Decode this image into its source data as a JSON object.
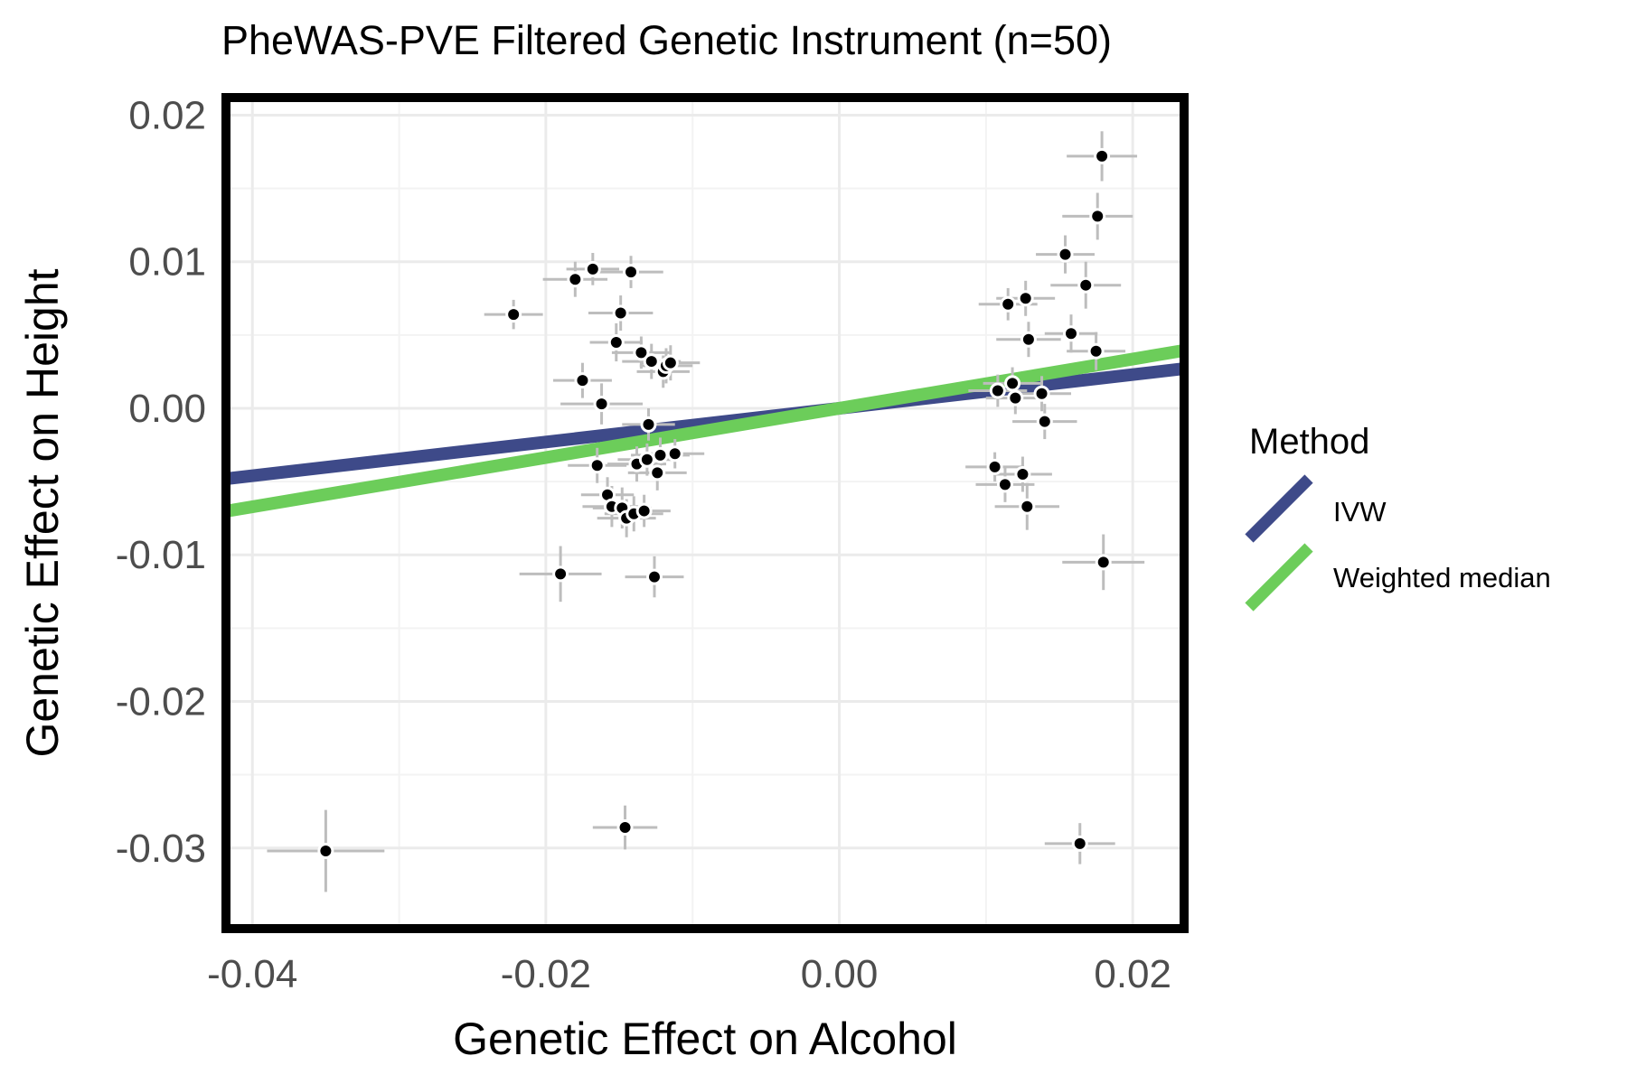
{
  "chart_data": {
    "type": "scatter",
    "title": "PheWAS-PVE Filtered Genetic Instrument (n=50)",
    "xlabel": "Genetic Effect on Alcohol",
    "ylabel": "Genetic Effect on Height",
    "xlim": [
      -0.0418,
      0.0235
    ],
    "ylim": [
      -0.0355,
      0.0212
    ],
    "xticks": [
      -0.04,
      -0.02,
      0.0,
      0.02
    ],
    "xtick_labels": [
      "-0.04",
      "-0.02",
      "0.00",
      "0.02"
    ],
    "yticks": [
      -0.03,
      -0.02,
      -0.01,
      0.0,
      0.01,
      0.02
    ],
    "ytick_labels": [
      "-0.03",
      "-0.02",
      "-0.01",
      "0.00",
      "0.01",
      "0.02"
    ],
    "grid": true,
    "legend": {
      "title": "Method",
      "placement": "right",
      "entries": [
        {
          "label": "IVW",
          "color": "#3e4a89"
        },
        {
          "label": "Weighted median",
          "color": "#6ccd5a"
        }
      ]
    },
    "lines": [
      {
        "name": "IVW",
        "color": "#3e4a89",
        "slope": 0.115,
        "intercept": 0.0
      },
      {
        "name": "Weighted median",
        "color": "#6ccd5a",
        "slope": 0.168,
        "intercept": 0.0
      }
    ],
    "points": [
      {
        "x": -0.035,
        "y": -0.0302,
        "xerr": 0.004,
        "yerr": 0.0028
      },
      {
        "x": -0.0222,
        "y": 0.0064,
        "xerr": 0.002,
        "yerr": 0.001
      },
      {
        "x": -0.019,
        "y": -0.0113,
        "xerr": 0.0028,
        "yerr": 0.0019
      },
      {
        "x": -0.018,
        "y": 0.0088,
        "xerr": 0.0022,
        "yerr": 0.0012
      },
      {
        "x": -0.0175,
        "y": 0.0019,
        "xerr": 0.002,
        "yerr": 0.0012
      },
      {
        "x": -0.0168,
        "y": 0.0095,
        "xerr": 0.0018,
        "yerr": 0.0011
      },
      {
        "x": -0.0165,
        "y": -0.0039,
        "xerr": 0.002,
        "yerr": 0.0012
      },
      {
        "x": -0.0162,
        "y": 0.0003,
        "xerr": 0.0028,
        "yerr": 0.0014
      },
      {
        "x": -0.0158,
        "y": -0.0059,
        "xerr": 0.0018,
        "yerr": 0.0012
      },
      {
        "x": -0.0155,
        "y": -0.0067,
        "xerr": 0.002,
        "yerr": 0.0014
      },
      {
        "x": -0.0152,
        "y": 0.0045,
        "xerr": 0.0018,
        "yerr": 0.0013
      },
      {
        "x": -0.0149,
        "y": 0.0065,
        "xerr": 0.0022,
        "yerr": 0.0012
      },
      {
        "x": -0.0148,
        "y": -0.0068,
        "xerr": 0.002,
        "yerr": 0.0014
      },
      {
        "x": -0.0146,
        "y": -0.0286,
        "xerr": 0.0022,
        "yerr": 0.0015
      },
      {
        "x": -0.0145,
        "y": -0.0075,
        "xerr": 0.002,
        "yerr": 0.0013
      },
      {
        "x": -0.0142,
        "y": 0.0093,
        "xerr": 0.0022,
        "yerr": 0.0011
      },
      {
        "x": -0.014,
        "y": -0.0072,
        "xerr": 0.002,
        "yerr": 0.0012
      },
      {
        "x": -0.0138,
        "y": -0.0038,
        "xerr": 0.002,
        "yerr": 0.0012
      },
      {
        "x": -0.0135,
        "y": 0.0038,
        "xerr": 0.002,
        "yerr": 0.0011
      },
      {
        "x": -0.0133,
        "y": -0.007,
        "xerr": 0.0018,
        "yerr": 0.0011
      },
      {
        "x": -0.0131,
        "y": -0.0035,
        "xerr": 0.002,
        "yerr": 0.0011
      },
      {
        "x": -0.013,
        "y": -0.0011,
        "xerr": 0.0018,
        "yerr": 0.0011
      },
      {
        "x": -0.0128,
        "y": 0.0032,
        "xerr": 0.002,
        "yerr": 0.0012
      },
      {
        "x": -0.0126,
        "y": -0.0115,
        "xerr": 0.002,
        "yerr": 0.0014
      },
      {
        "x": -0.0124,
        "y": -0.0044,
        "xerr": 0.002,
        "yerr": 0.0012
      },
      {
        "x": -0.0122,
        "y": -0.0032,
        "xerr": 0.002,
        "yerr": 0.0012
      },
      {
        "x": -0.012,
        "y": 0.0025,
        "xerr": 0.0018,
        "yerr": 0.0011
      },
      {
        "x": -0.0118,
        "y": 0.0029,
        "xerr": 0.0018,
        "yerr": 0.0012
      },
      {
        "x": -0.0115,
        "y": 0.0031,
        "xerr": 0.002,
        "yerr": 0.0012
      },
      {
        "x": -0.0112,
        "y": -0.0031,
        "xerr": 0.002,
        "yerr": 0.001
      },
      {
        "x": 0.0106,
        "y": -0.004,
        "xerr": 0.002,
        "yerr": 0.001
      },
      {
        "x": 0.0108,
        "y": 0.0012,
        "xerr": 0.002,
        "yerr": 0.0011
      },
      {
        "x": 0.0113,
        "y": -0.0052,
        "xerr": 0.002,
        "yerr": 0.0012
      },
      {
        "x": 0.0115,
        "y": 0.0071,
        "xerr": 0.002,
        "yerr": 0.0011
      },
      {
        "x": 0.0118,
        "y": 0.0017,
        "xerr": 0.002,
        "yerr": 0.0011
      },
      {
        "x": 0.012,
        "y": 0.0007,
        "xerr": 0.002,
        "yerr": 0.0011
      },
      {
        "x": 0.0125,
        "y": -0.0045,
        "xerr": 0.002,
        "yerr": 0.0012
      },
      {
        "x": 0.0127,
        "y": 0.0075,
        "xerr": 0.002,
        "yerr": 0.0012
      },
      {
        "x": 0.0128,
        "y": -0.0067,
        "xerr": 0.0022,
        "yerr": 0.0016
      },
      {
        "x": 0.0129,
        "y": 0.0047,
        "xerr": 0.0022,
        "yerr": 0.0012
      },
      {
        "x": 0.0138,
        "y": 0.001,
        "xerr": 0.002,
        "yerr": 0.0012
      },
      {
        "x": 0.014,
        "y": -0.0009,
        "xerr": 0.0022,
        "yerr": 0.0012
      },
      {
        "x": 0.0154,
        "y": 0.0105,
        "xerr": 0.002,
        "yerr": 0.0013
      },
      {
        "x": 0.0158,
        "y": 0.0051,
        "xerr": 0.0018,
        "yerr": 0.0013
      },
      {
        "x": 0.0164,
        "y": -0.0297,
        "xerr": 0.0024,
        "yerr": 0.0014
      },
      {
        "x": 0.0168,
        "y": 0.0084,
        "xerr": 0.0024,
        "yerr": 0.0016
      },
      {
        "x": 0.0175,
        "y": 0.0039,
        "xerr": 0.002,
        "yerr": 0.0013
      },
      {
        "x": 0.0176,
        "y": 0.0131,
        "xerr": 0.0024,
        "yerr": 0.0016
      },
      {
        "x": 0.0179,
        "y": 0.0172,
        "xerr": 0.0024,
        "yerr": 0.0017
      },
      {
        "x": 0.018,
        "y": -0.0105,
        "xerr": 0.0028,
        "yerr": 0.0019
      }
    ]
  }
}
